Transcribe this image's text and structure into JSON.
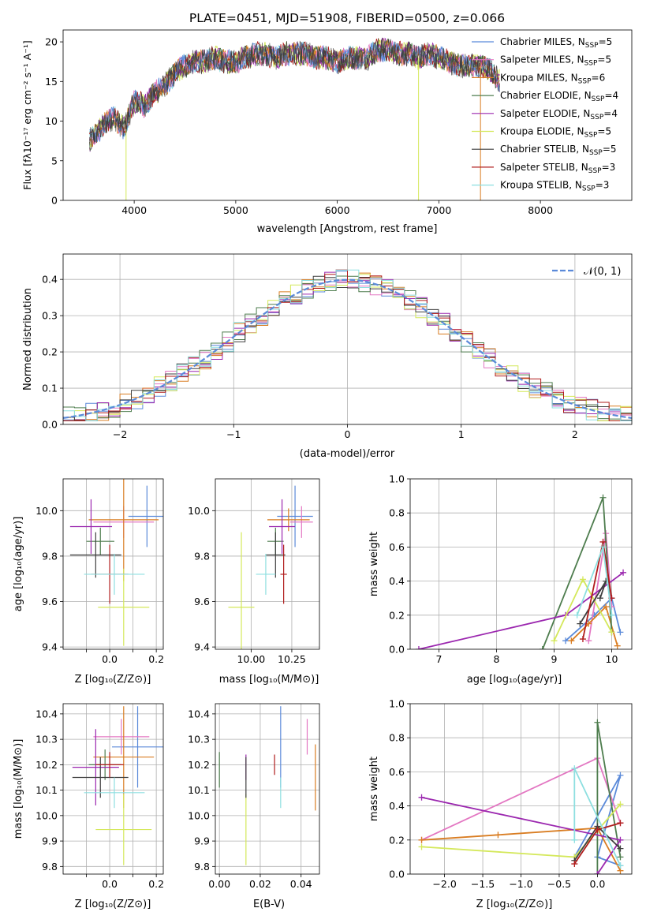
{
  "chart_data": [
    {
      "id": "spectrum",
      "type": "line",
      "title": "PLATE=0451, MJD=51908, FIBERID=0500, z=0.066",
      "xlabel": "wavelength [Angstrom, rest frame]",
      "ylabel": "Flux [fλ10⁻¹⁷ erg cm⁻² s⁻¹ A⁻¹]",
      "xlim": [
        3300,
        8900
      ],
      "ylim": [
        0,
        21.5
      ],
      "xticks": [
        4000,
        5000,
        6000,
        7000,
        8000
      ],
      "yticks": [
        0,
        5,
        10,
        15,
        20
      ],
      "legend_position": "right",
      "spectrum_points": {
        "x": [
          3560,
          3700,
          3800,
          3900,
          4000,
          4100,
          4200,
          4300,
          4400,
          4500,
          4600,
          4700,
          4800,
          4900,
          5000,
          5100,
          5200,
          5300,
          5400,
          5500,
          5600,
          5700,
          5800,
          5900,
          6000,
          6100,
          6200,
          6300,
          6400,
          6500,
          6600,
          6700,
          6800,
          6900,
          7000,
          7100,
          7200,
          7300,
          7400,
          7500,
          7600
        ],
        "y": [
          7.5,
          9.5,
          10.5,
          9.0,
          12.5,
          12.0,
          13.5,
          14.5,
          16.0,
          17.0,
          17.5,
          17.5,
          18.0,
          17.5,
          17.5,
          18.0,
          18.5,
          18.5,
          18.0,
          18.5,
          18.5,
          18.5,
          18.0,
          18.0,
          17.5,
          18.0,
          18.0,
          18.0,
          19.0,
          19.0,
          18.5,
          18.5,
          18.0,
          18.5,
          18.0,
          17.5,
          17.0,
          17.0,
          17.0,
          16.5,
          15.0
        ]
      },
      "series": [
        {
          "name": "Chabrier MILES, N$_{SSP}$=5",
          "label": "Chabrier MILES, N",
          "sub": "SSP",
          "tail": "=5",
          "color": "#5b8ad9"
        },
        {
          "name": "Salpeter MILES, N$_{SSP}$=5",
          "label": "Salpeter MILES, N",
          "sub": "SSP",
          "tail": "=5",
          "color": "#e377c2"
        },
        {
          "name": "Kroupa MILES, N$_{SSP}$=6",
          "label": "Kroupa MILES, N",
          "sub": "SSP",
          "tail": "=6",
          "color": "#d97d22"
        },
        {
          "name": "Chabrier ELODIE, N$_{SSP}$=4",
          "label": "Chabrier ELODIE, N",
          "sub": "SSP",
          "tail": "=4",
          "color": "#4e7d4e"
        },
        {
          "name": "Salpeter ELODIE, N$_{SSP}$=4",
          "label": "Salpeter ELODIE, N",
          "sub": "SSP",
          "tail": "=4",
          "color": "#9b27af"
        },
        {
          "name": "Kroupa ELODIE, N$_{SSP}$=5",
          "label": "Kroupa ELODIE, N",
          "sub": "SSP",
          "tail": "=5",
          "color": "#d4e85a"
        },
        {
          "name": "Chabrier STELIB, N$_{SSP}$=5",
          "label": "Chabrier STELIB, N",
          "sub": "SSP",
          "tail": "=5",
          "color": "#3f3f3f"
        },
        {
          "name": "Salpeter STELIB, N$_{SSP}$=3",
          "label": "Salpeter STELIB, N",
          "sub": "SSP",
          "tail": "=3",
          "color": "#b01c1c"
        },
        {
          "name": "Kroupa STELIB, N$_{SSP}$=3",
          "label": "Kroupa STELIB, N",
          "sub": "SSP",
          "tail": "=3",
          "color": "#8ddfe0"
        }
      ]
    },
    {
      "id": "residuals",
      "type": "line",
      "xlabel": "(data-model)/error",
      "ylabel": "Normed distribution",
      "xlim": [
        -2.5,
        2.5
      ],
      "ylim": [
        0,
        0.47
      ],
      "xticks": [
        -2,
        -1,
        0,
        1,
        2
      ],
      "yticks": [
        0.0,
        0.1,
        0.2,
        0.3,
        0.4
      ],
      "grid": true,
      "legend_position": "top-right",
      "legend": "𝒩(0, 1)",
      "gaussian_color": "#5b8ad9"
    },
    {
      "id": "z_vs_age",
      "type": "scatter",
      "xlabel": "Z [log₁₀(Z/Z⊙)]",
      "ylabel": "age [log₁₀(age/yr)]",
      "xlim": [
        -0.2,
        0.23
      ],
      "ylim": [
        9.39,
        10.14
      ],
      "xticks": [
        -0.1,
        0.0,
        0.1,
        0.2
      ],
      "xtick_labels": [
        "",
        "0.0",
        "",
        "0.2"
      ],
      "yticks": [
        9.4,
        9.6,
        9.8,
        10.0
      ],
      "grid": true,
      "points": [
        {
          "x": 0.16,
          "xerr": 0.08,
          "y": 9.975,
          "yerr": 0.135,
          "series": 0
        },
        {
          "x": 0.06,
          "xerr": 0.13,
          "y": 9.95,
          "yerr": 0.07,
          "series": 1
        },
        {
          "x": 0.06,
          "xerr": 0.15,
          "y": 9.96,
          "yerr": 0.27,
          "series": 2
        },
        {
          "x": -0.04,
          "xerr": 0.06,
          "y": 9.865,
          "yerr": 0.06,
          "series": 3
        },
        {
          "x": -0.08,
          "xerr": 0.09,
          "y": 9.93,
          "yerr": 0.12,
          "series": 4
        },
        {
          "x": 0.06,
          "xerr": 0.11,
          "y": 9.575,
          "yerr": 0.17,
          "series": 5
        },
        {
          "x": -0.06,
          "xerr": 0.11,
          "y": 9.805,
          "yerr": 0.1,
          "series": 6
        },
        {
          "x": 0.0,
          "xerr": 0.08,
          "y": 9.72,
          "yerr": 0.13,
          "series": 7
        },
        {
          "x": 0.02,
          "xerr": 0.13,
          "y": 9.72,
          "yerr": 0.09,
          "series": 8
        }
      ]
    },
    {
      "id": "mass_vs_age",
      "type": "scatter",
      "xlabel": "mass [log₁₀(M/M⊙)]",
      "ylabel": "",
      "xlim": [
        9.78,
        10.42
      ],
      "ylim": [
        9.39,
        10.14
      ],
      "xticks": [
        10.0,
        10.25
      ],
      "xtick_labels": [
        "10.00",
        "10.25"
      ],
      "yticks": [
        9.4,
        9.6,
        9.8,
        10.0
      ],
      "grid": true,
      "points": [
        {
          "x": 10.27,
          "xerr": 0.11,
          "y": 9.975,
          "yerr": 0.135,
          "series": 0
        },
        {
          "x": 10.31,
          "xerr": 0.07,
          "y": 9.95,
          "yerr": 0.07,
          "series": 1
        },
        {
          "x": 10.23,
          "xerr": 0.13,
          "y": 9.96,
          "yerr": 0.05,
          "series": 2
        },
        {
          "x": 10.15,
          "xerr": 0.05,
          "y": 9.865,
          "yerr": 0.06,
          "series": 3
        },
        {
          "x": 10.19,
          "xerr": 0.08,
          "y": 9.93,
          "yerr": 0.12,
          "series": 4
        },
        {
          "x": 9.94,
          "xerr": 0.08,
          "y": 9.575,
          "yerr": 0.33,
          "series": 5
        },
        {
          "x": 10.15,
          "xerr": 0.06,
          "y": 9.805,
          "yerr": 0.1,
          "series": 6
        },
        {
          "x": 10.2,
          "xerr": 0.02,
          "y": 9.72,
          "yerr": 0.13,
          "series": 7
        },
        {
          "x": 10.09,
          "xerr": 0.06,
          "y": 9.72,
          "yerr": 0.09,
          "series": 8
        }
      ]
    },
    {
      "id": "age_vs_weight",
      "type": "line",
      "xlabel": "age [log₁₀(age/yr)]",
      "ylabel": "mass weight",
      "xlim": [
        6.5,
        10.35
      ],
      "ylim": [
        0,
        1
      ],
      "xticks": [
        7,
        8,
        9,
        10
      ],
      "yticks": [
        0.0,
        0.2,
        0.4,
        0.6,
        0.8,
        1.0
      ],
      "grid": true,
      "lines": [
        {
          "series": 0,
          "x": [
            9.2,
            9.7,
            10.0,
            10.15
          ],
          "y": [
            0.05,
            0.2,
            0.3,
            0.1
          ]
        },
        {
          "series": 1,
          "x": [
            9.6,
            9.9,
            10.0
          ],
          "y": [
            0.05,
            0.68,
            0.25
          ]
        },
        {
          "series": 2,
          "x": [
            9.3,
            9.6,
            9.9,
            10.1
          ],
          "y": [
            0.05,
            0.15,
            0.25,
            0.02
          ]
        },
        {
          "series": 3,
          "x": [
            8.8,
            9.85,
            10.0
          ],
          "y": [
            0.0,
            0.89,
            0.1
          ]
        },
        {
          "series": 4,
          "x": [
            6.65,
            9.2,
            10.2
          ],
          "y": [
            0.0,
            0.2,
            0.45
          ]
        },
        {
          "series": 5,
          "x": [
            9.0,
            9.5,
            10.0
          ],
          "y": [
            0.05,
            0.41,
            0.1
          ]
        },
        {
          "series": 6,
          "x": [
            9.45,
            9.9,
            9.8
          ],
          "y": [
            0.15,
            0.4,
            0.3
          ]
        },
        {
          "series": 7,
          "x": [
            9.5,
            9.85,
            10.0
          ],
          "y": [
            0.06,
            0.63,
            0.3
          ]
        },
        {
          "series": 8,
          "x": [
            9.4,
            9.85,
            10.0
          ],
          "y": [
            0.2,
            0.6,
            0.2
          ]
        }
      ]
    },
    {
      "id": "z_vs_mass",
      "type": "scatter",
      "xlabel": "Z [log₁₀(Z/Z⊙)]",
      "ylabel": "mass [log₁₀(M/M⊙)]",
      "xlim": [
        -0.2,
        0.23
      ],
      "ylim": [
        9.77,
        10.44
      ],
      "xticks": [
        -0.1,
        0.0,
        0.1,
        0.2
      ],
      "xtick_labels": [
        "",
        "0.0",
        "",
        "0.2"
      ],
      "yticks": [
        9.8,
        9.9,
        10.0,
        10.1,
        10.2,
        10.3,
        10.4
      ],
      "grid": true,
      "points": [
        {
          "x": 0.12,
          "xerr": 0.11,
          "y": 10.27,
          "yerr": 0.16,
          "series": 0
        },
        {
          "x": 0.05,
          "xerr": 0.12,
          "y": 10.31,
          "yerr": 0.07,
          "series": 1
        },
        {
          "x": 0.06,
          "xerr": 0.13,
          "y": 10.23,
          "yerr": 0.2,
          "series": 2
        },
        {
          "x": -0.02,
          "xerr": 0.07,
          "y": 10.2,
          "yerr": 0.06,
          "series": 3
        },
        {
          "x": -0.06,
          "xerr": 0.1,
          "y": 10.19,
          "yerr": 0.15,
          "series": 4
        },
        {
          "x": 0.06,
          "xerr": 0.12,
          "y": 9.945,
          "yerr": 0.14,
          "series": 5
        },
        {
          "x": -0.04,
          "xerr": 0.12,
          "y": 10.15,
          "yerr": 0.08,
          "series": 6
        },
        {
          "x": 0.0,
          "xerr": 0.06,
          "y": 10.2,
          "yerr": 0.05,
          "series": 7
        },
        {
          "x": 0.02,
          "xerr": 0.13,
          "y": 10.09,
          "yerr": 0.06,
          "series": 8
        }
      ]
    },
    {
      "id": "ebv_vs_mass",
      "type": "scatter",
      "xlabel": "E(B-V)",
      "ylabel": "",
      "xlim": [
        -0.002,
        0.049
      ],
      "ylim": [
        9.77,
        10.44
      ],
      "xticks": [
        0.0,
        0.02,
        0.04
      ],
      "xtick_labels": [
        "0.00",
        "0.02",
        "0.04"
      ],
      "yticks": [
        9.8,
        9.9,
        10.0,
        10.1,
        10.2,
        10.3,
        10.4
      ],
      "grid": true,
      "points": [
        {
          "x": 0.03,
          "y": 10.27,
          "yerr": 0.16,
          "series": 0
        },
        {
          "x": 0.043,
          "y": 10.31,
          "yerr": 0.07,
          "series": 1
        },
        {
          "x": 0.047,
          "y": 10.15,
          "yerr": 0.13,
          "series": 2
        },
        {
          "x": 0.0,
          "y": 10.18,
          "yerr": 0.07,
          "series": 3
        },
        {
          "x": 0.013,
          "y": 10.19,
          "yerr": 0.05,
          "series": 4
        },
        {
          "x": 0.013,
          "y": 9.945,
          "yerr": 0.14,
          "series": 5
        },
        {
          "x": 0.013,
          "y": 10.15,
          "yerr": 0.08,
          "series": 6
        },
        {
          "x": 0.027,
          "y": 10.2,
          "yerr": 0.04,
          "series": 7
        },
        {
          "x": 0.03,
          "y": 10.09,
          "yerr": 0.06,
          "series": 8
        }
      ]
    },
    {
      "id": "z_vs_weight",
      "type": "line",
      "xlabel": "Z [log₁₀(Z/Z⊙)]",
      "ylabel": "mass weight",
      "xlim": [
        -2.45,
        0.45
      ],
      "ylim": [
        0,
        1
      ],
      "xticks": [
        -2.0,
        -1.5,
        -1.0,
        -0.5,
        0.0
      ],
      "xtick_labels": [
        "−2.0",
        "−1.5",
        "−1.0",
        "−0.5",
        "0.0"
      ],
      "yticks": [
        0.0,
        0.2,
        0.4,
        0.6,
        0.8,
        1.0
      ],
      "grid": true,
      "lines": [
        {
          "series": 0,
          "x": [
            -0.3,
            0.3,
            0.0,
            0.3
          ],
          "y": [
            0.1,
            0.58,
            0.1,
            0.05
          ]
        },
        {
          "series": 1,
          "x": [
            -2.3,
            0.0,
            0.3
          ],
          "y": [
            0.2,
            0.68,
            0.3
          ]
        },
        {
          "series": 2,
          "x": [
            -2.3,
            -1.3,
            0.0,
            0.3
          ],
          "y": [
            0.2,
            0.23,
            0.27,
            0.02
          ]
        },
        {
          "series": 3,
          "x": [
            0.0,
            0.0,
            0.3
          ],
          "y": [
            0.0,
            0.89,
            0.1
          ]
        },
        {
          "series": 4,
          "x": [
            -2.3,
            0.3,
            0.0
          ],
          "y": [
            0.45,
            0.2,
            0.0
          ]
        },
        {
          "series": 5,
          "x": [
            -2.3,
            -0.3,
            0.3
          ],
          "y": [
            0.16,
            0.1,
            0.41
          ]
        },
        {
          "series": 6,
          "x": [
            -0.3,
            0.0,
            0.3
          ],
          "y": [
            0.08,
            0.28,
            0.15
          ]
        },
        {
          "series": 7,
          "x": [
            -0.3,
            0.0,
            0.3
          ],
          "y": [
            0.06,
            0.26,
            0.3
          ]
        },
        {
          "series": 8,
          "x": [
            -0.3,
            -0.3,
            0.3
          ],
          "y": [
            0.2,
            0.62,
            0.05
          ]
        }
      ]
    }
  ]
}
